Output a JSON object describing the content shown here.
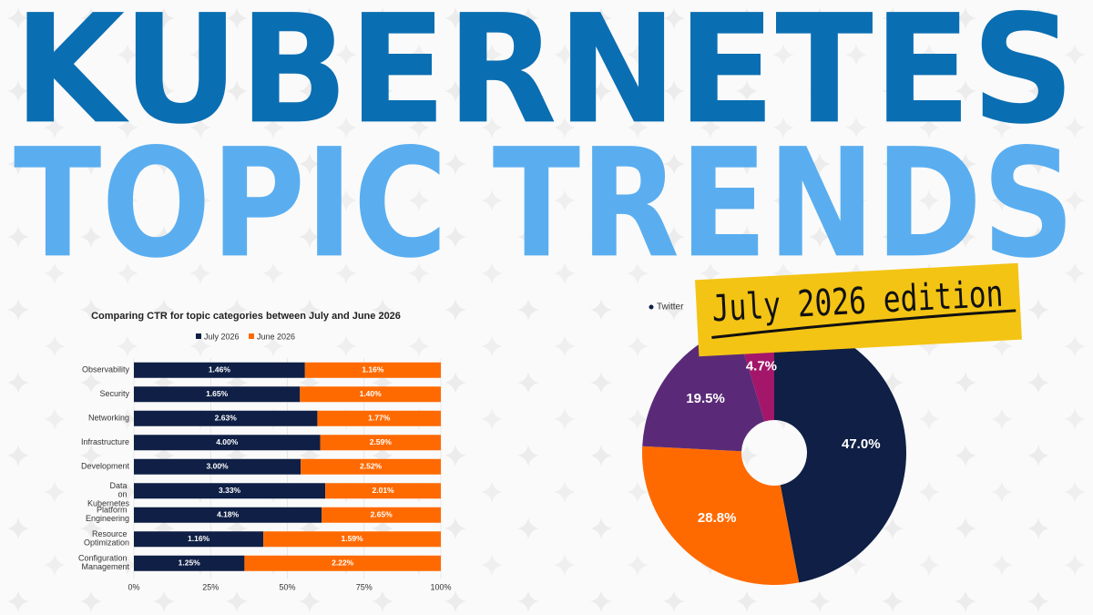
{
  "header": {
    "line1": "KUBERNETES",
    "line2": "TOPIC TRENDS",
    "badge": "July 2026 edition"
  },
  "chart_data": [
    {
      "type": "bar",
      "stacked": "percent",
      "orientation": "horizontal",
      "title": "Comparing CTR for topic categories between July and June 2026",
      "categories": [
        "Observability",
        "Security",
        "Networking",
        "Infrastructure",
        "Development",
        "Data on Kubernetes",
        "Platform Engineering",
        "Resource Optimization",
        "Configuration Management"
      ],
      "series": [
        {
          "name": "July 2026",
          "color": "#0f1f45",
          "values": [
            1.46,
            1.65,
            2.63,
            4.0,
            3.0,
            3.33,
            4.18,
            1.16,
            1.25
          ],
          "value_labels": [
            "1.46%",
            "1.65%",
            "2.63%",
            "4.00%",
            "3.00%",
            "3.33%",
            "4.18%",
            "1.16%",
            "1.25%"
          ]
        },
        {
          "name": "June 2026",
          "color": "#ff6a00",
          "values": [
            1.16,
            1.4,
            1.77,
            2.59,
            2.52,
            2.01,
            2.65,
            1.59,
            2.22
          ],
          "value_labels": [
            "1.16%",
            "1.40%",
            "1.77%",
            "2.59%",
            "2.52%",
            "2.01%",
            "2.65%",
            "1.59%",
            "2.22%"
          ]
        }
      ],
      "xlim": [
        0,
        100
      ],
      "xticks": [
        {
          "value": 0,
          "label": "0%"
        },
        {
          "value": 25,
          "label": "25%"
        },
        {
          "value": 50,
          "label": "50%"
        },
        {
          "value": 75,
          "label": "75%"
        },
        {
          "value": 100,
          "label": "100%"
        }
      ]
    },
    {
      "type": "pie",
      "donut": true,
      "categories": [
        "Twitter",
        null,
        null,
        null
      ],
      "values": [
        47.0,
        28.8,
        19.5,
        4.7
      ],
      "value_labels": [
        "47.0%",
        "28.8%",
        "19.5%",
        "4.7%"
      ],
      "colors": [
        "#0f1f45",
        "#ff6a00",
        "#5a2a78",
        "#a3166a"
      ]
    }
  ]
}
